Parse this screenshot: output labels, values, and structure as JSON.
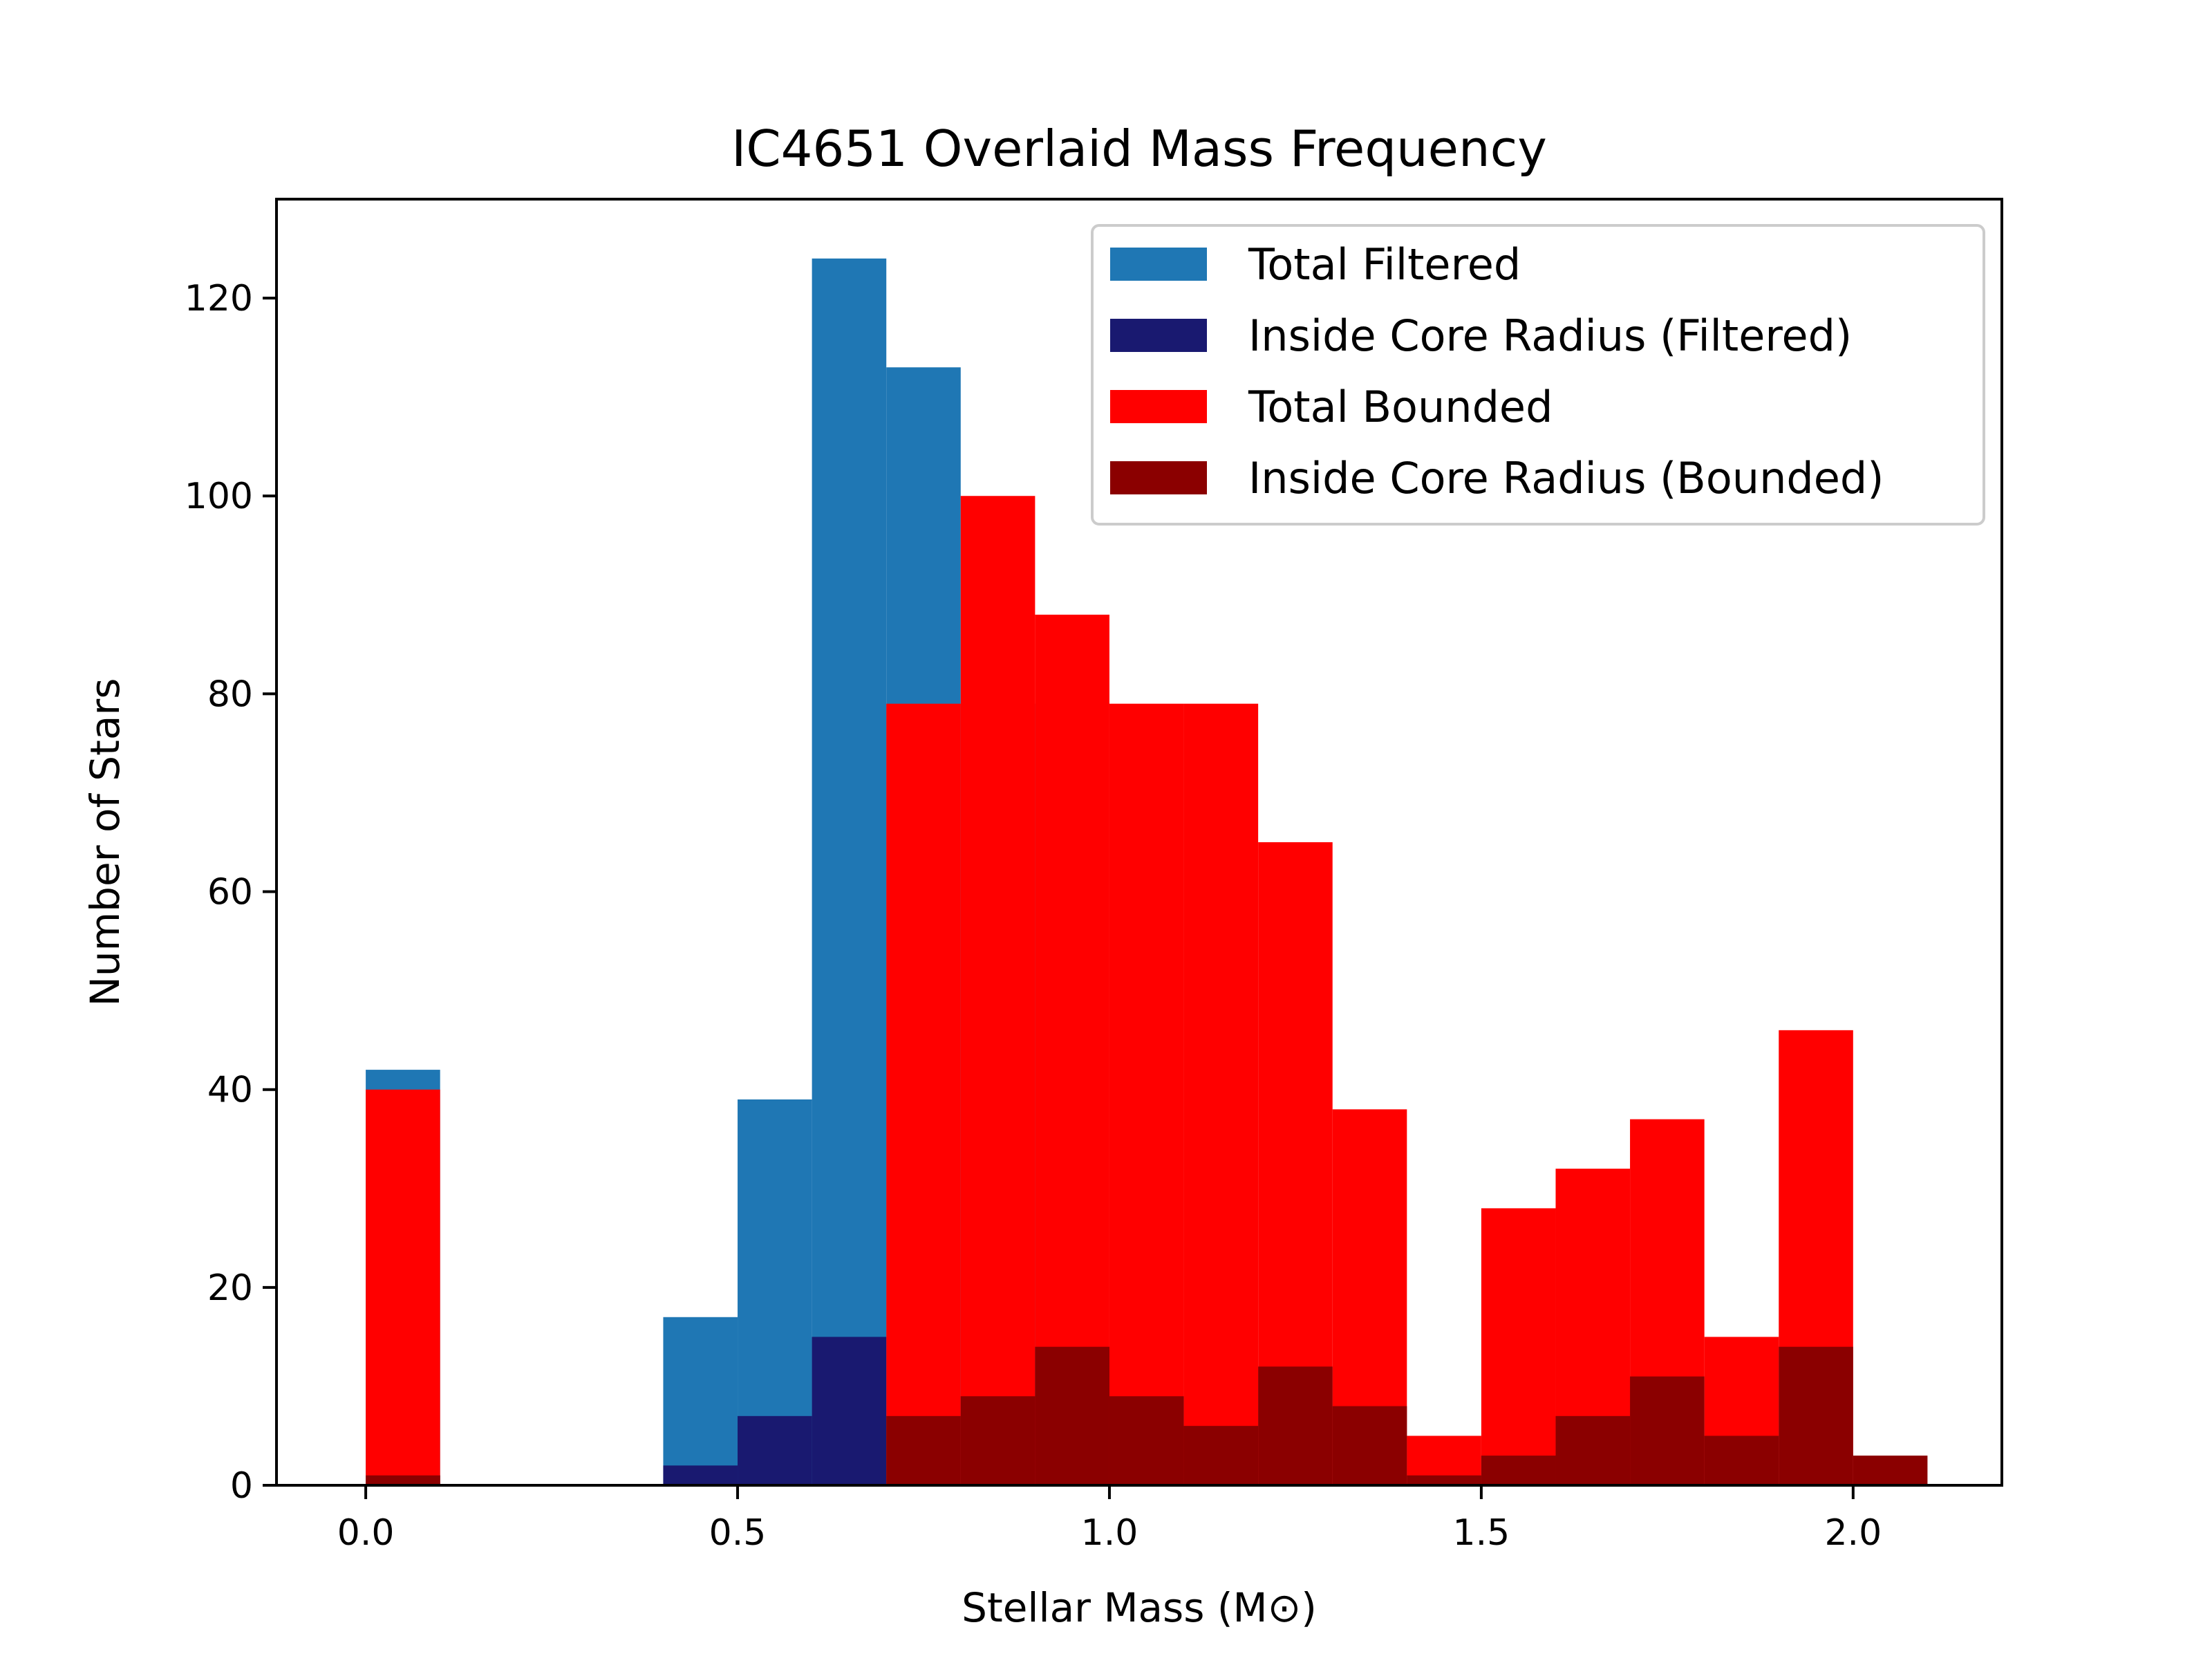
{
  "chart_data": {
    "type": "bar",
    "title": "IC4651 Overlaid Mass Frequency",
    "xlabel": "Stellar Mass (M⊙)",
    "ylabel": "Number of Stars",
    "xlim": [
      -0.12,
      2.2
    ],
    "ylim": [
      0,
      130
    ],
    "xticks": [
      0.0,
      0.5,
      1.0,
      1.5,
      2.0
    ],
    "xtick_labels": [
      "0.0",
      "0.5",
      "1.0",
      "1.5",
      "2.0"
    ],
    "yticks": [
      0,
      20,
      40,
      60,
      80,
      100,
      120
    ],
    "ytick_labels": [
      "0",
      "20",
      "40",
      "60",
      "80",
      "100",
      "120"
    ],
    "grid": false,
    "legend_position": "top-right",
    "bin_edges": [
      0.0,
      0.1,
      0.2,
      0.3,
      0.4,
      0.5,
      0.6,
      0.7,
      0.8,
      0.9,
      1.0,
      1.1,
      1.2,
      1.3,
      1.4,
      1.5,
      1.6,
      1.7,
      1.8,
      1.9,
      2.0,
      2.1
    ],
    "series": [
      {
        "name": "Total Filtered",
        "color": "#1f77b4",
        "values": [
          42,
          0,
          0,
          0,
          17,
          39,
          124,
          113,
          79,
          0,
          0,
          0,
          0,
          0,
          0,
          0,
          0,
          0,
          0,
          0,
          0
        ]
      },
      {
        "name": "Inside Core Radius (Filtered)",
        "color": "#191970",
        "values": [
          1,
          0,
          0,
          0,
          2,
          7,
          15,
          0,
          0,
          0,
          0,
          0,
          0,
          0,
          0,
          0,
          0,
          0,
          0,
          0,
          0
        ]
      },
      {
        "name": "Total Bounded",
        "color": "#ff0000",
        "values": [
          40,
          0,
          0,
          0,
          0,
          0,
          0,
          79,
          100,
          88,
          79,
          79,
          65,
          38,
          5,
          28,
          32,
          37,
          15,
          46,
          0
        ]
      },
      {
        "name": "Inside Core Radius (Bounded)",
        "color": "#8b0000",
        "values": [
          1,
          0,
          0,
          0,
          0,
          0,
          0,
          7,
          9,
          14,
          9,
          6,
          12,
          8,
          1,
          3,
          7,
          11,
          5,
          14,
          3
        ]
      }
    ]
  }
}
